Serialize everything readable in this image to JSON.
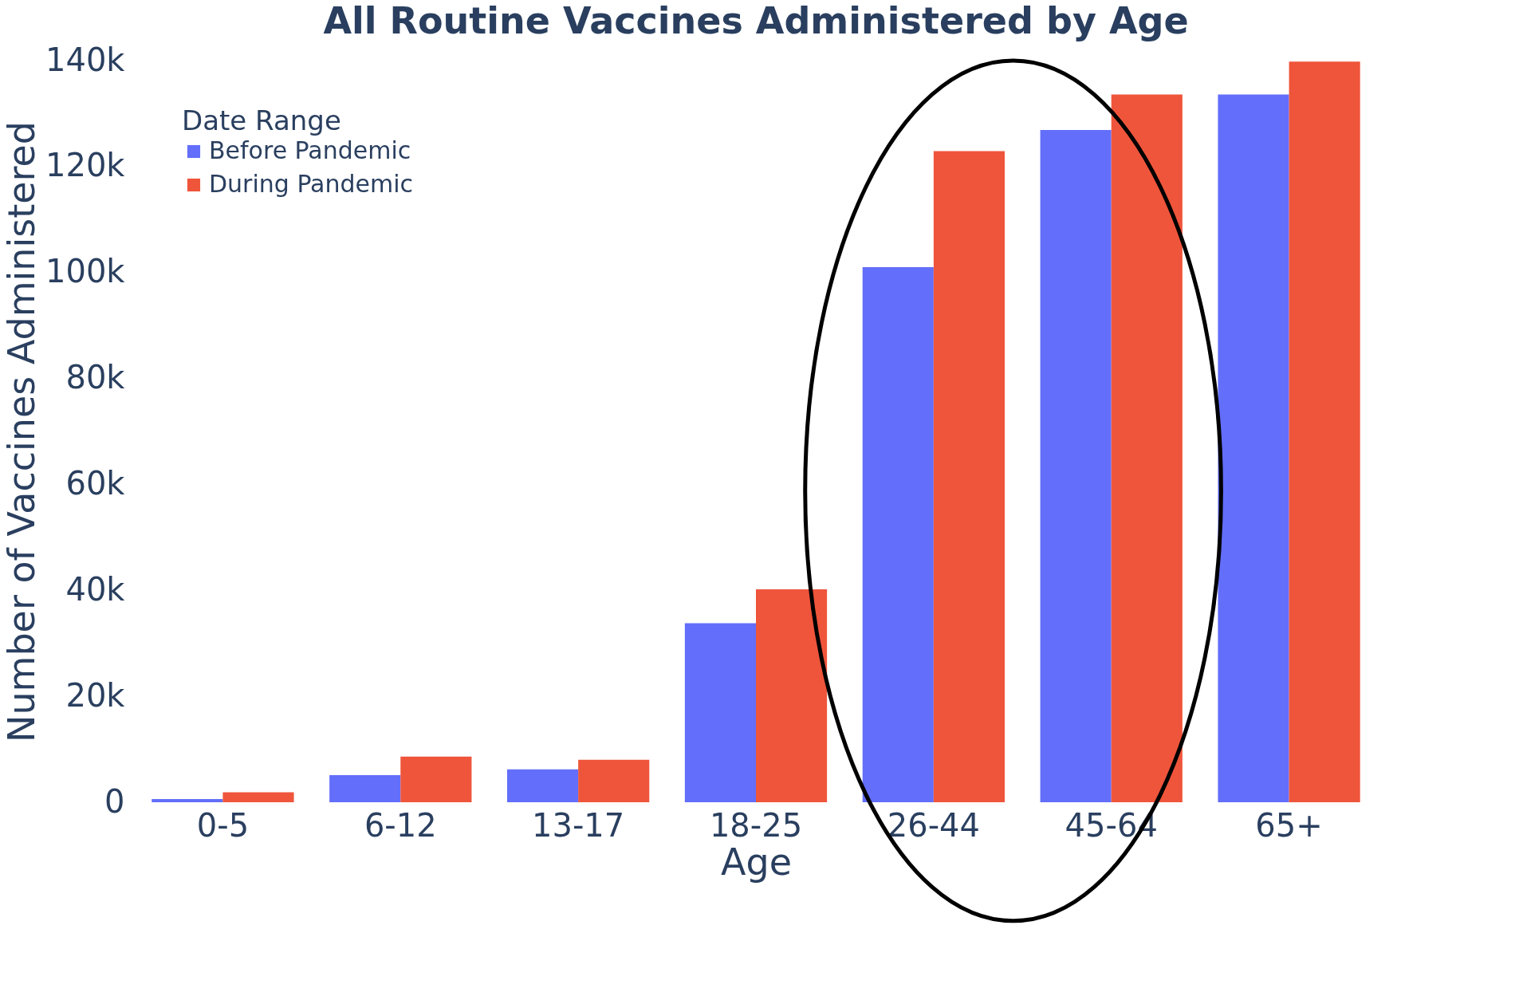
{
  "chart_data": {
    "type": "bar",
    "title": "All Routine Vaccines Administered by Age",
    "xlabel": "Age",
    "ylabel": "Number of Vaccines Administered",
    "legend_title": "Date Range",
    "categories": [
      "0-5",
      "6-12",
      "13-17",
      "18-25",
      "26-44",
      "45-64",
      "65+"
    ],
    "series": [
      {
        "name": "Before Pandemic",
        "color": "#636efa",
        "values": [
          600,
          5100,
          6200,
          33800,
          101000,
          126900,
          133600
        ]
      },
      {
        "name": "During Pandemic",
        "color": "#ef553b",
        "values": [
          1900,
          8600,
          8000,
          40200,
          122900,
          133600,
          139800
        ]
      }
    ],
    "ylim": [
      0,
      140000
    ],
    "yticks": [
      {
        "value": 0,
        "label": "0"
      },
      {
        "value": 20000,
        "label": "20k"
      },
      {
        "value": 40000,
        "label": "40k"
      },
      {
        "value": 60000,
        "label": "60k"
      },
      {
        "value": 80000,
        "label": "80k"
      },
      {
        "value": 100000,
        "label": "100k"
      },
      {
        "value": 120000,
        "label": "120k"
      },
      {
        "value": 140000,
        "label": "140k"
      }
    ],
    "grid": false,
    "legend": "top left"
  }
}
